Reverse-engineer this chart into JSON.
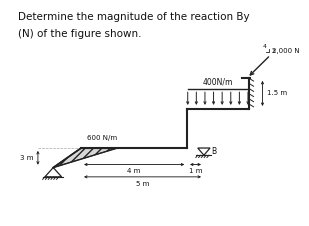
{
  "title_line1": "Determine the magnitude of the reaction By",
  "title_line2": "(N) of the figure shown.",
  "title_fontsize": 7.5,
  "fig_bg": "#ffffff",
  "line_color": "#222222",
  "text_color": "#111111",
  "dist_load_label": "400N/m",
  "triang_load_label": "600 N/m",
  "label_3m": "3 m",
  "label_4m": "4 m",
  "label_5m": "5 m",
  "label_1_5m": "1.5 m",
  "label_1m": "1 m",
  "label_B": "B",
  "force_2000_label": "2,000 N",
  "force_angle_num": "4",
  "force_angle_den": "3",
  "yL": 0.33,
  "yU": 0.52,
  "yTop": 0.67,
  "xPinLeft": 0.14,
  "xIncBot": 0.155,
  "yIncBot": 0.235,
  "xIncTop": 0.255,
  "xBeamStart": 0.255,
  "xStep": 0.635,
  "xB": 0.695,
  "xW": 0.855,
  "dl_arrow_count": 7
}
